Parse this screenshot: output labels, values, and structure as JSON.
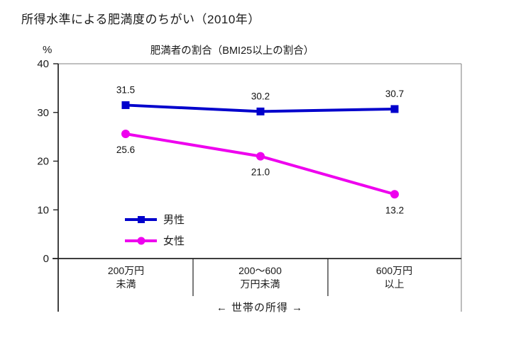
{
  "title": "所得水準による肥満度のちがい（2010年）",
  "chart_data": {
    "type": "line",
    "subtitle": "肥満者の割合（BMI25以上の割合）",
    "y_unit": "%",
    "ylim": [
      0,
      40
    ],
    "y_ticks": [
      40,
      30,
      20,
      10,
      0
    ],
    "x_axis_label": "←  世帯の所得  →",
    "categories": [
      {
        "line1": "200万円",
        "line2": "未満"
      },
      {
        "line1": "200～600",
        "line2": "万円未満"
      },
      {
        "line1": "600万円",
        "line2": "以上"
      }
    ],
    "series": [
      {
        "name": "男性",
        "color": "#0000CC",
        "marker": "square",
        "values": [
          31.5,
          30.2,
          30.7
        ],
        "label_position": "above"
      },
      {
        "name": "女性",
        "color": "#EE00EE",
        "marker": "circle",
        "values": [
          25.6,
          21.0,
          13.2
        ],
        "label_position": "below"
      }
    ],
    "legend_position": "inside-bottom-left",
    "grid": false,
    "axis_color": "#222222",
    "frame_color": "#999999",
    "label_color": "#111111"
  }
}
